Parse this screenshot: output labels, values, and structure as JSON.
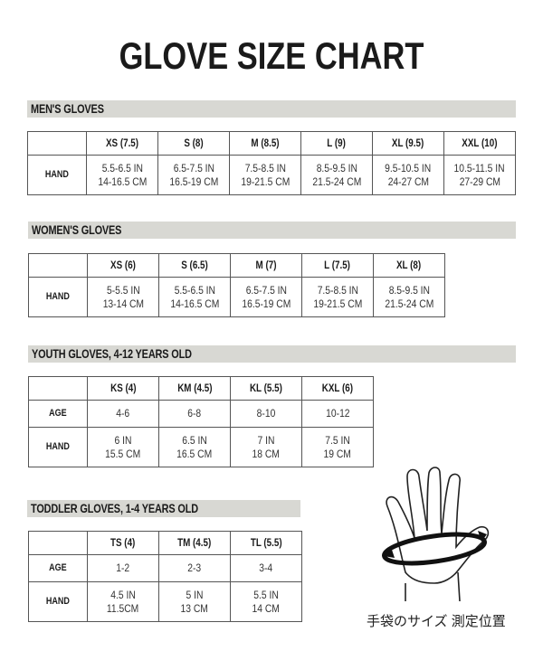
{
  "title": "GLOVE SIZE CHART",
  "sections": [
    {
      "heading": "MEN'S GLOVES",
      "columns": [
        "XS (7.5)",
        "S (8)",
        "M (8.5)",
        "L (9)",
        "XL (9.5)",
        "XXL (10)"
      ],
      "rows": [
        {
          "label": "HAND",
          "cells": [
            [
              "5.5-6.5 IN",
              "14-16.5 CM"
            ],
            [
              "6.5-7.5 IN",
              "16.5-19 CM"
            ],
            [
              "7.5-8.5 IN",
              "19-21.5 CM"
            ],
            [
              "8.5-9.5 IN",
              "21.5-24 CM"
            ],
            [
              "9.5-10.5 IN",
              "24-27 CM"
            ],
            [
              "10.5-11.5 IN",
              "27-29 CM"
            ]
          ]
        }
      ]
    },
    {
      "heading": "WOMEN'S GLOVES",
      "columns": [
        "XS (6)",
        "S (6.5)",
        "M (7)",
        "L (7.5)",
        "XL (8)"
      ],
      "rows": [
        {
          "label": "HAND",
          "cells": [
            [
              "5-5.5 IN",
              "13-14 CM"
            ],
            [
              "5.5-6.5 IN",
              "14-16.5 CM"
            ],
            [
              "6.5-7.5 IN",
              "16.5-19 CM"
            ],
            [
              "7.5-8.5 IN",
              "19-21.5 CM"
            ],
            [
              "8.5-9.5 IN",
              "21.5-24 CM"
            ]
          ]
        }
      ]
    },
    {
      "heading": "YOUTH GLOVES, 4-12 YEARS OLD",
      "columns": [
        "KS (4)",
        "KM (4.5)",
        "KL (5.5)",
        "KXL (6)"
      ],
      "rows": [
        {
          "label": "AGE",
          "cells": [
            [
              "4-6"
            ],
            [
              "6-8"
            ],
            [
              "8-10"
            ],
            [
              "10-12"
            ]
          ]
        },
        {
          "label": "HAND",
          "cells": [
            [
              "6 IN",
              "15.5 CM"
            ],
            [
              "6.5 IN",
              "16.5 CM"
            ],
            [
              "7 IN",
              "18 CM"
            ],
            [
              "7.5 IN",
              "19 CM"
            ]
          ]
        }
      ]
    },
    {
      "heading": "TODDLER GLOVES, 1-4 YEARS OLD",
      "columns": [
        "TS (4)",
        "TM (4.5)",
        "TL (5.5)"
      ],
      "rows": [
        {
          "label": "AGE",
          "cells": [
            [
              "1-2"
            ],
            [
              "2-3"
            ],
            [
              "3-4"
            ]
          ]
        },
        {
          "label": "HAND",
          "cells": [
            [
              "4.5 IN",
              "11.5CM"
            ],
            [
              "5 IN",
              "13 CM"
            ],
            [
              "5.5 IN",
              "14 CM"
            ]
          ]
        }
      ]
    }
  ],
  "illustration": {
    "icon": "hand-measurement-icon",
    "caption": "手袋のサイズ 測定位置"
  },
  "colors": {
    "heading_bar": "#d8d8d3",
    "border": "#555555",
    "text": "#1a1a1a"
  }
}
